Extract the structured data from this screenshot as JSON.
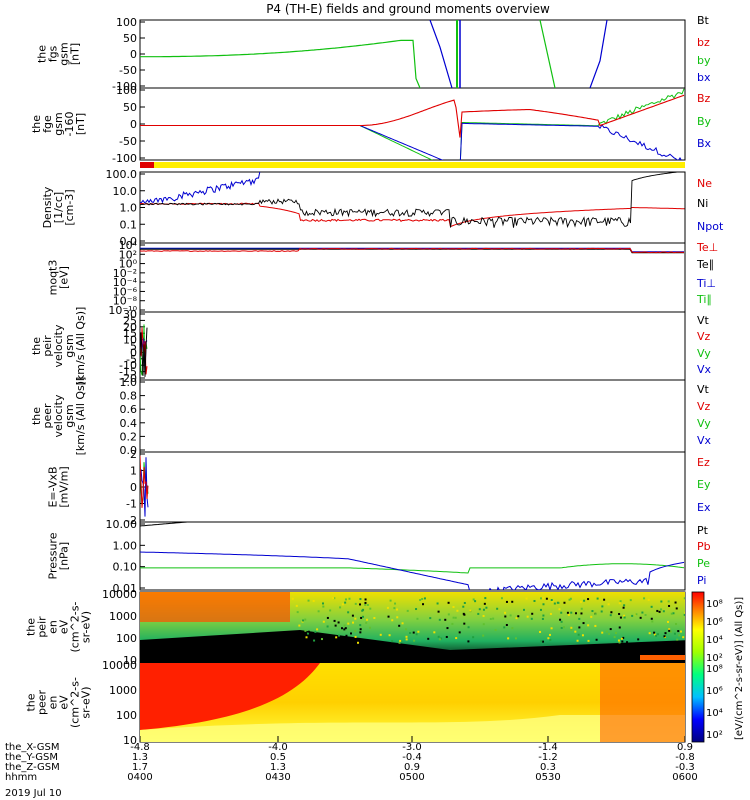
{
  "title": "P4 (TH-E) fields and ground moments overview",
  "date_label": "2019 Jul 10",
  "colors": {
    "black": "#000000",
    "red": "#e00000",
    "green": "#10c010",
    "blue": "#0000d0",
    "yellow": "#ffee00"
  },
  "chart_data": [
    {
      "type": "line",
      "id": "fgs",
      "ylabel_lines": [
        "the",
        "fgs",
        "gsm",
        "[nT]"
      ],
      "ylim": [
        -100,
        100
      ],
      "ytick_labels": [
        "100",
        "50",
        "0",
        "-50",
        "-100"
      ],
      "series": [
        {
          "name": "Bt",
          "color": "#000000"
        },
        {
          "name": "bz",
          "color": "#e00000"
        },
        {
          "name": "by",
          "color": "#10c010"
        },
        {
          "name": "bx",
          "color": "#0000d0"
        }
      ]
    },
    {
      "type": "line",
      "id": "fge",
      "ylabel_lines": [
        "the",
        "fge",
        "gsm",
        "-160",
        "[nT]"
      ],
      "ylim": [
        -120,
        120
      ],
      "ytick_labels": [
        "100",
        "50",
        "0",
        "-50",
        "-100"
      ],
      "series": [
        {
          "name": "Bz",
          "color": "#e00000"
        },
        {
          "name": "By",
          "color": "#10c010"
        },
        {
          "name": "Bx",
          "color": "#0000d0"
        }
      ]
    },
    {
      "type": "line",
      "id": "density",
      "scale": "log",
      "ylabel_lines": [
        "Density",
        "[1/cc]",
        "[cm-3]"
      ],
      "ytick_labels": [
        "100.0",
        "10.0",
        "1.0",
        "0.1",
        "0.0"
      ],
      "series": [
        {
          "name": "Ne",
          "color": "#e00000"
        },
        {
          "name": "Ni",
          "color": "#000000"
        },
        {
          "name": "Npot",
          "color": "#0000d0"
        }
      ]
    },
    {
      "type": "line",
      "id": "temperature",
      "scale": "log",
      "ylabel_lines": [
        "moqt3",
        "[eV]"
      ],
      "ytick_labels": [
        "10⁴",
        "10²",
        "10⁰",
        "10⁻²",
        "10⁻⁴",
        "10⁻⁶",
        "10⁻⁸",
        "10⁻¹⁰"
      ],
      "series": [
        {
          "name": "Te⊥",
          "color": "#e00000"
        },
        {
          "name": "Te∥",
          "color": "#000000"
        },
        {
          "name": "Ti⊥",
          "color": "#0000d0"
        },
        {
          "name": "Ti∥",
          "color": "#10c010"
        }
      ]
    },
    {
      "type": "line",
      "id": "peir_velocity",
      "ylabel_lines": [
        "the",
        "peir",
        "velocity",
        "gsm",
        "[km/s (All Qs)]"
      ],
      "ylim": [
        -20,
        30
      ],
      "ytick_labels": [
        "30",
        "25",
        "20",
        "15",
        "10",
        "5",
        "0",
        "-5",
        "-10",
        "-15",
        "-20"
      ],
      "series": [
        {
          "name": "Vt",
          "color": "#000000"
        },
        {
          "name": "Vz",
          "color": "#e00000"
        },
        {
          "name": "Vy",
          "color": "#10c010"
        },
        {
          "name": "Vx",
          "color": "#0000d0"
        }
      ]
    },
    {
      "type": "line",
      "id": "peer_velocity",
      "ylabel_lines": [
        "the",
        "peer",
        "velocity",
        "gsm",
        "[km/s (All Qs)]"
      ],
      "ylim": [
        0,
        1
      ],
      "ytick_labels": [
        "1.0",
        "0.8",
        "0.6",
        "0.4",
        "0.2",
        "0.0"
      ],
      "series": [
        {
          "name": "Vt",
          "color": "#000000"
        },
        {
          "name": "Vz",
          "color": "#e00000"
        },
        {
          "name": "Vy",
          "color": "#10c010"
        },
        {
          "name": "Vx",
          "color": "#0000d0"
        }
      ]
    },
    {
      "type": "line",
      "id": "efield",
      "ylabel_lines": [
        "E=-VxB",
        "[mV/m]"
      ],
      "ylim": [
        -2,
        2
      ],
      "ytick_labels": [
        "2",
        "1",
        "0",
        "-1",
        "-2"
      ],
      "series": [
        {
          "name": "Ez",
          "color": "#e00000"
        },
        {
          "name": "Ey",
          "color": "#10c010"
        },
        {
          "name": "Ex",
          "color": "#0000d0"
        }
      ]
    },
    {
      "type": "line",
      "id": "pressure",
      "scale": "log",
      "ylabel_lines": [
        "Pressure",
        "[nPa]"
      ],
      "ytick_labels": [
        "10.00",
        "1.00",
        "0.10",
        "0.01"
      ],
      "series": [
        {
          "name": "Pt",
          "color": "#000000"
        },
        {
          "name": "Pb",
          "color": "#e00000"
        },
        {
          "name": "Pe",
          "color": "#10c010"
        },
        {
          "name": "Pi",
          "color": "#0000d0"
        }
      ]
    },
    {
      "type": "heatmap",
      "id": "peir_spectrogram",
      "scale": "log",
      "ylabel_lines": [
        "the",
        "peir",
        "en",
        "eV",
        "(cm^2-s-",
        "sr-eV)"
      ],
      "ytick_labels": [
        "10000",
        "1000",
        "100",
        "10"
      ],
      "colorbar_ticks": [
        "10⁸",
        "10⁶",
        "10⁴",
        "10²"
      ]
    },
    {
      "type": "heatmap",
      "id": "peer_spectrogram",
      "scale": "log",
      "ylabel_lines": [
        "the",
        "peer",
        "en",
        "eV",
        "(cm^2-s-",
        "sr-eV)"
      ],
      "ytick_labels": [
        "10000",
        "1000",
        "100",
        "10"
      ],
      "colorbar_ticks": [
        "10⁸",
        "10⁶",
        "10⁴",
        "10²"
      ]
    }
  ],
  "colorbar_label": "[eV/(cm^2-s-sr-eV)] (All Qs)]",
  "x_axis": {
    "rows": [
      {
        "label": "the_X-GSM",
        "values": [
          "-4.8",
          "-4.0",
          "-3.0",
          "-1.4",
          "0.9"
        ]
      },
      {
        "label": "the_Y-GSM",
        "values": [
          "1.3",
          "0.5",
          "-0.4",
          "-1.2",
          "-0.8"
        ]
      },
      {
        "label": "the_Z-GSM",
        "values": [
          "1.7",
          "1.3",
          "0.9",
          "0.3",
          "-0.3"
        ]
      },
      {
        "label": "hhmm",
        "values": [
          "0400",
          "0430",
          "0500",
          "0530",
          "0600"
        ]
      }
    ]
  }
}
